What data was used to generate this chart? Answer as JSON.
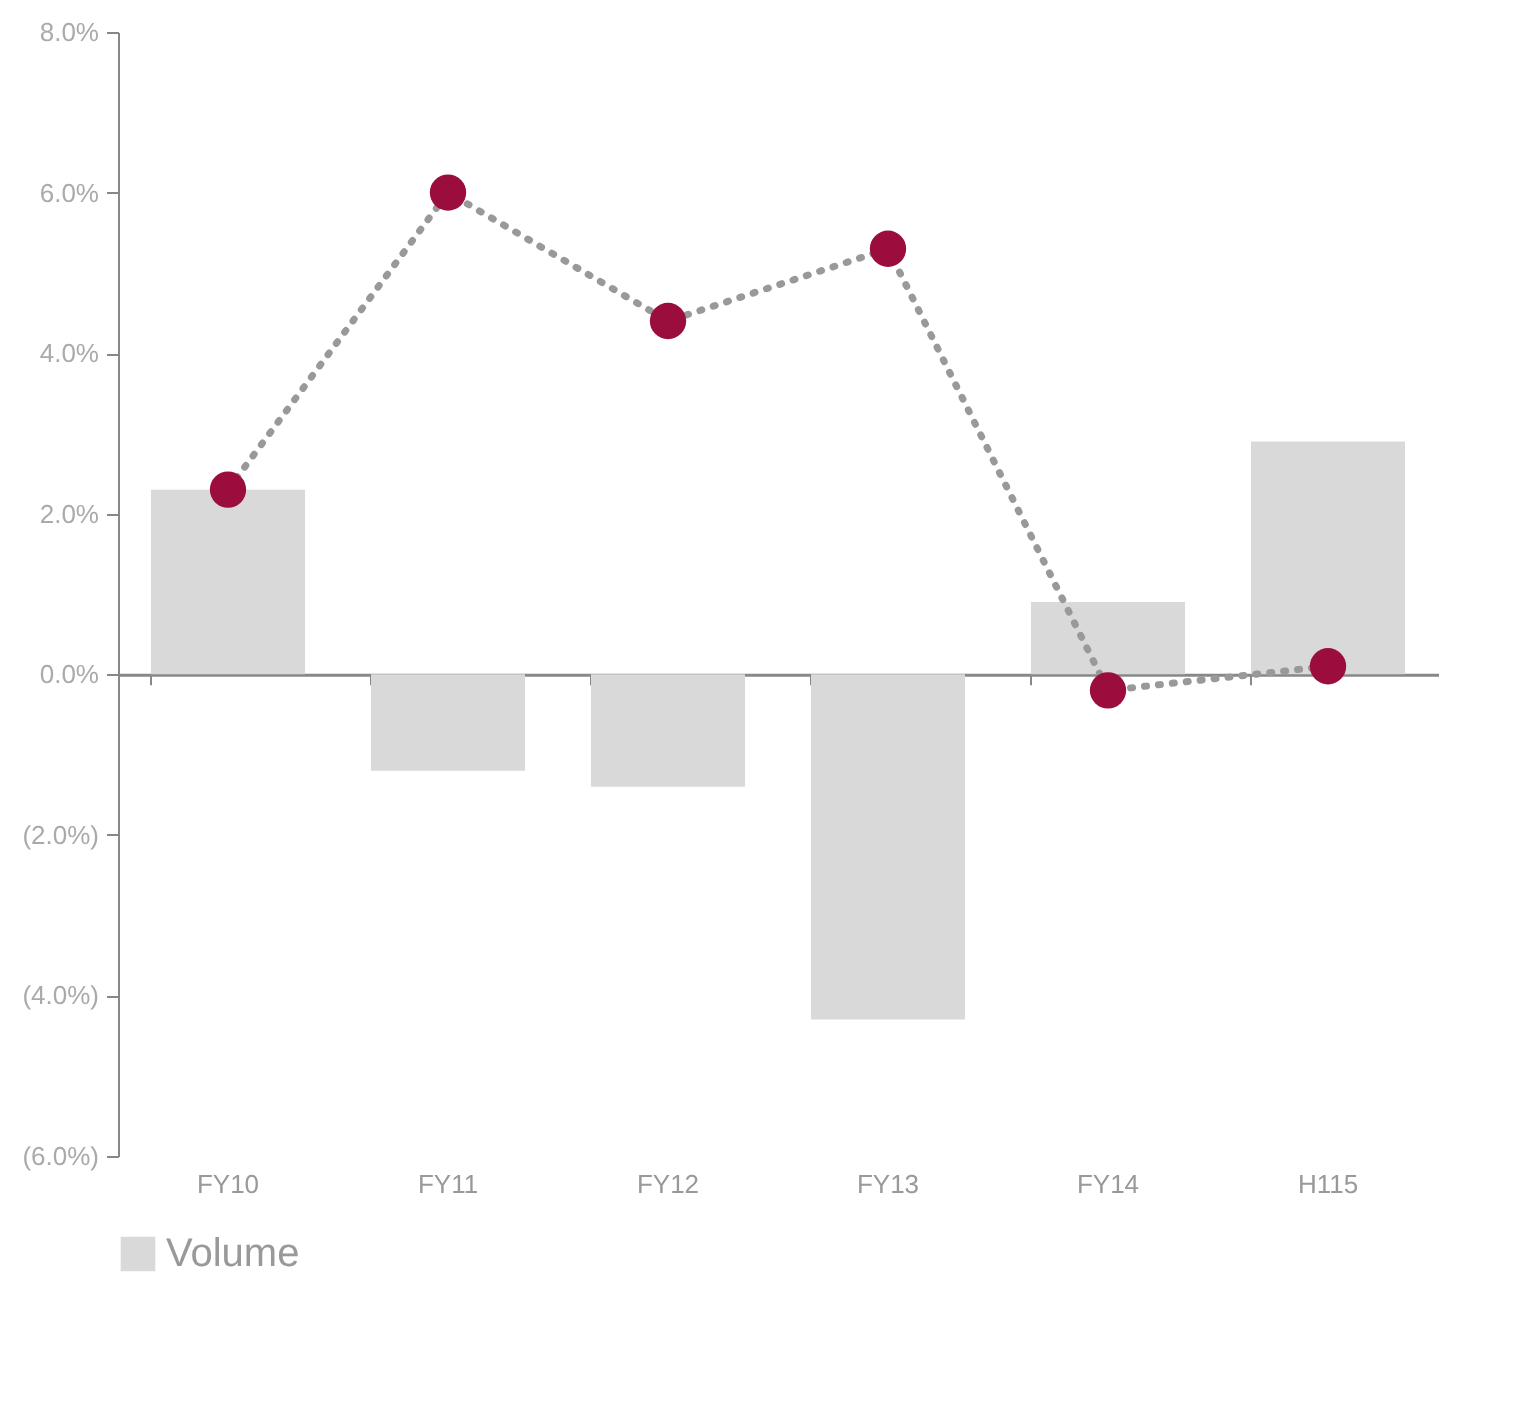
{
  "chart_data": {
    "type": "bar",
    "categories": [
      "FY10",
      "FY11",
      "FY12",
      "FY13",
      "FY14",
      "H115"
    ],
    "series": [
      {
        "name": "Volume",
        "color": "#d9d9d9",
        "values": [
          2.3,
          -1.2,
          -1.4,
          -4.3,
          0.9,
          2.9
        ]
      },
      {
        "type": "line",
        "color": "#9b0d3c",
        "marker": "circle",
        "line_style": "dotted",
        "values": [
          2.3,
          6.0,
          4.4,
          5.3,
          -0.2,
          0.1
        ]
      }
    ],
    "ylim": [
      -6,
      8
    ],
    "yticks": [
      {
        "value": -6,
        "label": "(6.0%)"
      },
      {
        "value": -4,
        "label": "(4.0%)"
      },
      {
        "value": -2,
        "label": "(2.0%)"
      },
      {
        "value": 0,
        "label": "0.0%"
      },
      {
        "value": 2,
        "label": "2.0%"
      },
      {
        "value": 4,
        "label": "4.0%"
      },
      {
        "value": 6,
        "label": "6.0%"
      },
      {
        "value": 8,
        "label": "8.0%"
      }
    ],
    "legend": "bottom"
  }
}
